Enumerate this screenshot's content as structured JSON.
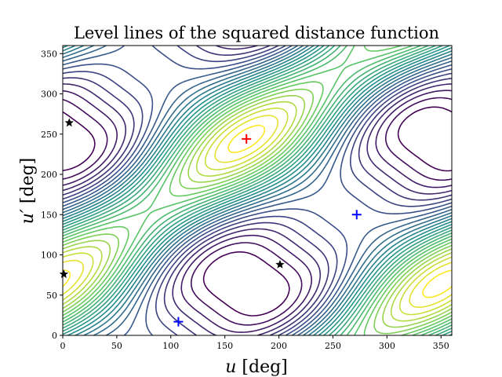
{
  "chart_data": {
    "type": "contour",
    "title": "Level lines of the squared distance function",
    "xlabel_var": "u",
    "xlabel_unit": " [deg]",
    "ylabel_var": "u′",
    "ylabel_unit": " [deg]",
    "xlim": [
      0,
      360
    ],
    "ylim": [
      0,
      360
    ],
    "xticks": [
      0,
      50,
      100,
      150,
      200,
      250,
      300,
      350
    ],
    "yticks": [
      0,
      50,
      100,
      150,
      200,
      250,
      300,
      350
    ],
    "grid": false,
    "colormap": "viridis",
    "markers": [
      {
        "kind": "plus",
        "color": "#ff0000",
        "x": 170,
        "y": 244
      },
      {
        "kind": "plus",
        "color": "#0000ff",
        "x": 272,
        "y": 150
      },
      {
        "kind": "plus",
        "color": "#0000ff",
        "x": 107,
        "y": 17
      },
      {
        "kind": "star",
        "color": "#000000",
        "x": 6,
        "y": 264
      },
      {
        "kind": "star",
        "color": "#000000",
        "x": 201,
        "y": 88
      },
      {
        "kind": "star",
        "color": "#000000",
        "x": 1,
        "y": 76
      }
    ]
  }
}
